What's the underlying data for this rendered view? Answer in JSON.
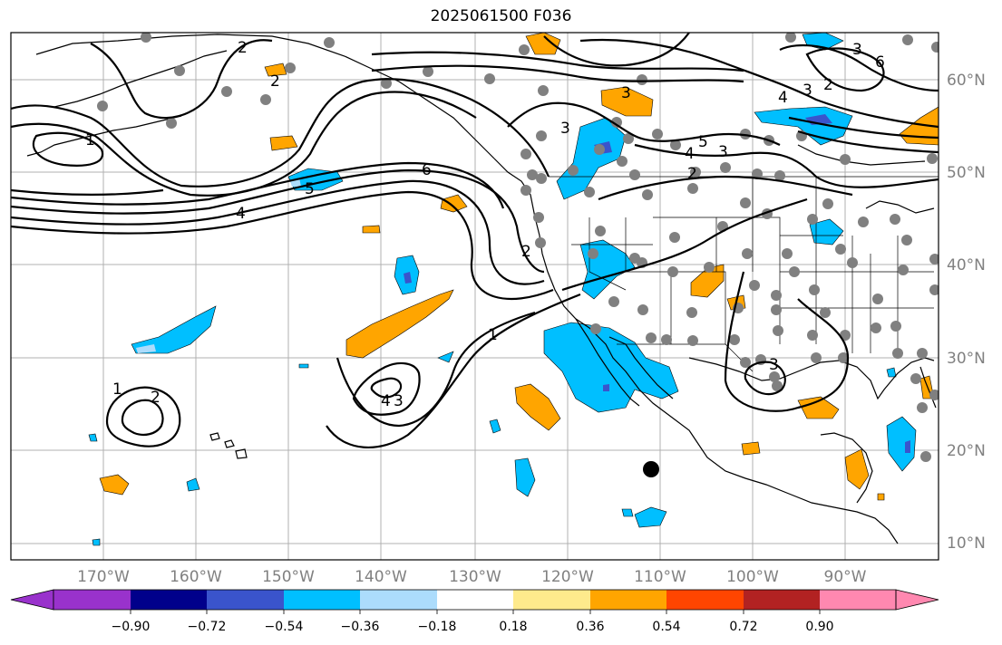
{
  "title": "2025061500 F036",
  "map": {
    "lon_labels": [
      "170°W",
      "160°W",
      "150°W",
      "140°W",
      "130°W",
      "120°W",
      "110°W",
      "100°W",
      "90°W"
    ],
    "lat_labels": [
      "60°N",
      "50°N",
      "40°N",
      "30°N",
      "20°N",
      "10°N"
    ],
    "contour_labels": [
      "2",
      "3",
      "4",
      "5",
      "6",
      "4",
      "3",
      "2",
      "1",
      "4",
      "3",
      "2",
      "1",
      "2",
      "1",
      "3",
      "2",
      "3",
      "4",
      "5",
      "3",
      "6",
      "2",
      "3"
    ],
    "fill_colors": {
      "negative": "#00bfff",
      "negative_strong": "#3a54cc",
      "positive": "#ffa500"
    }
  },
  "colorbar": {
    "colors": [
      "#9932cc",
      "#00008b",
      "#3a54cc",
      "#00bfff",
      "#acdcfc",
      "#ffffff",
      "#feea8c",
      "#ffa500",
      "#ff4500",
      "#b22222",
      "#ff88b0"
    ],
    "tick_labels": [
      "−0.90",
      "−0.72",
      "−0.54",
      "−0.36",
      "−0.18",
      "0.18",
      "0.36",
      "0.54",
      "0.72",
      "0.90"
    ]
  }
}
